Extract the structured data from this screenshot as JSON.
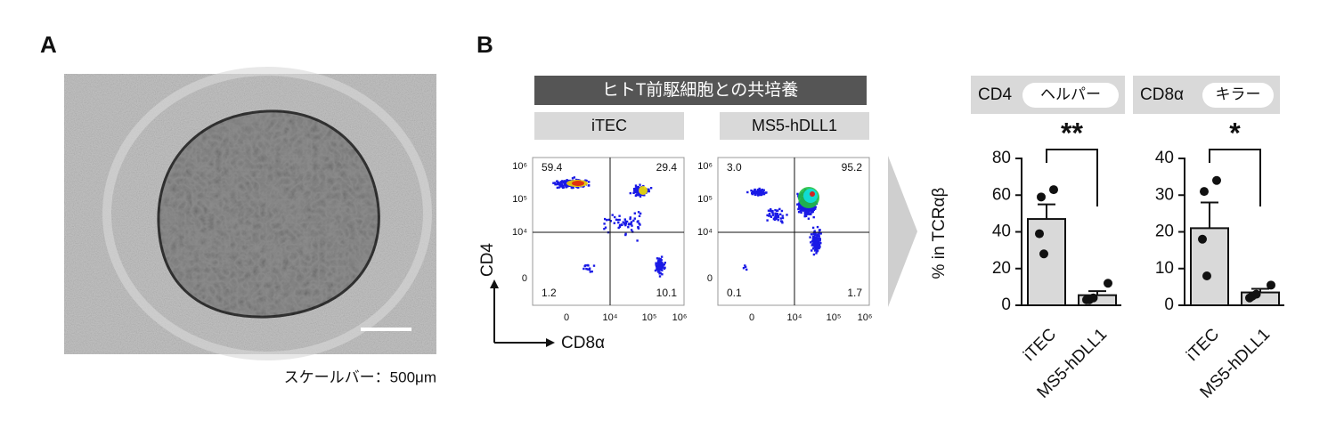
{
  "panel_a": {
    "label": "A",
    "caption": "スケールバー：500μm"
  },
  "panel_b": {
    "label": "B"
  },
  "flow": {
    "header": "ヒトT前駆細胞との共培養",
    "y_label": "CD4",
    "x_label": "CD8α",
    "y_ticks": [
      "10⁶",
      "10⁵",
      "10⁴",
      "0"
    ],
    "x_ticks": [
      "0",
      "10⁴",
      "10⁵",
      "10⁶"
    ],
    "plots": [
      {
        "label": "iTEC",
        "quadrants": [
          "59.4",
          "29.4",
          "1.2",
          "10.1"
        ]
      },
      {
        "label": "MS5-hDLL1",
        "quadrants": [
          "3.0",
          "95.2",
          "0.1",
          "1.7"
        ]
      }
    ]
  },
  "chart_data": [
    {
      "type": "bar",
      "title": "CD4",
      "tag": "ヘルパー",
      "ylabel": "% in TCRαβ",
      "categories": [
        "iTEC",
        "MS5-hDLL1"
      ],
      "values": [
        47,
        5.5
      ],
      "errors": [
        8,
        2.2
      ],
      "points": [
        [
          63,
          59,
          39,
          28
        ],
        [
          12,
          3,
          3,
          4
        ]
      ],
      "significance": "**",
      "color": "#d9d9d9",
      "ylim": [
        0,
        80
      ],
      "yticks": [
        0,
        20,
        40,
        60,
        80
      ]
    },
    {
      "type": "bar",
      "title": "CD8α",
      "tag": "キラー",
      "categories": [
        "iTEC",
        "MS5-hDLL1"
      ],
      "values": [
        21,
        3.5
      ],
      "errors": [
        7,
        1
      ],
      "points": [
        [
          34,
          31,
          18,
          8
        ],
        [
          5.5,
          2.5,
          2,
          3
        ]
      ],
      "significance": "*",
      "color": "#d9d9d9",
      "ylim": [
        0,
        40
      ],
      "yticks": [
        0,
        10,
        20,
        30,
        40
      ]
    }
  ]
}
